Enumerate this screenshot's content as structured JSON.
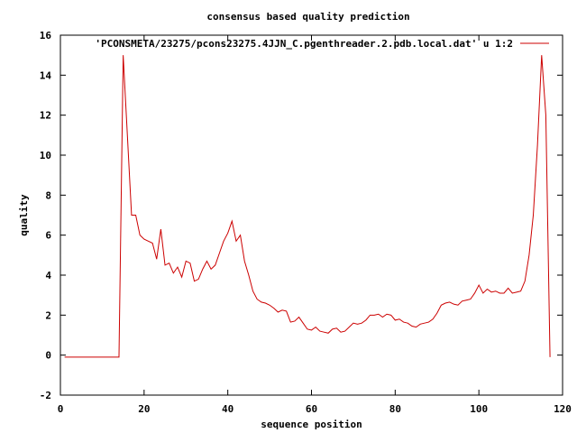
{
  "chart_data": {
    "type": "line",
    "title": "consensus based quality prediction",
    "xlabel": "sequence position",
    "ylabel": "quality",
    "xlim": [
      0,
      120
    ],
    "ylim": [
      -2,
      16
    ],
    "xticks": [
      0,
      20,
      40,
      60,
      80,
      100,
      120
    ],
    "yticks": [
      -2,
      0,
      2,
      4,
      6,
      8,
      10,
      12,
      14,
      16
    ],
    "legend_position": "top-right",
    "grid": false,
    "series": [
      {
        "name": "'PCONSMETA/23275/pcons23275.4JJN_C.pgenthreader.2.pdb.local.dat' u 1:2",
        "color": "#cc0000",
        "x": [
          1,
          2,
          3,
          4,
          5,
          6,
          7,
          8,
          9,
          10,
          11,
          12,
          13,
          14,
          15,
          16,
          17,
          18,
          19,
          20,
          21,
          22,
          23,
          24,
          25,
          26,
          27,
          28,
          29,
          30,
          31,
          32,
          33,
          34,
          35,
          36,
          37,
          38,
          39,
          40,
          41,
          42,
          43,
          44,
          45,
          46,
          47,
          48,
          49,
          50,
          51,
          52,
          53,
          54,
          55,
          56,
          57,
          58,
          59,
          60,
          61,
          62,
          63,
          64,
          65,
          66,
          67,
          68,
          69,
          70,
          71,
          72,
          73,
          74,
          75,
          76,
          77,
          78,
          79,
          80,
          81,
          82,
          83,
          84,
          85,
          86,
          87,
          88,
          89,
          90,
          91,
          92,
          93,
          94,
          95,
          96,
          97,
          98,
          99,
          100,
          101,
          102,
          103,
          104,
          105,
          106,
          107,
          108,
          109,
          110,
          111,
          112,
          113,
          114,
          115,
          116,
          117
        ],
        "y": [
          -0.1,
          -0.1,
          -0.1,
          -0.1,
          -0.1,
          -0.1,
          -0.1,
          -0.1,
          -0.1,
          -0.1,
          -0.1,
          -0.1,
          -0.1,
          -0.1,
          15.0,
          11.0,
          7.0,
          7.0,
          6.0,
          5.8,
          5.7,
          5.6,
          4.8,
          6.3,
          4.5,
          4.6,
          4.1,
          4.4,
          3.9,
          4.7,
          4.6,
          3.7,
          3.8,
          4.3,
          4.7,
          4.3,
          4.5,
          5.1,
          5.7,
          6.1,
          6.7,
          5.7,
          6.0,
          4.7,
          4.0,
          3.2,
          2.8,
          2.65,
          2.6,
          2.5,
          2.35,
          2.15,
          2.25,
          2.2,
          1.65,
          1.7,
          1.9,
          1.6,
          1.3,
          1.25,
          1.4,
          1.2,
          1.15,
          1.1,
          1.3,
          1.35,
          1.15,
          1.2,
          1.4,
          1.6,
          1.55,
          1.6,
          1.75,
          2.0,
          2.0,
          2.05,
          1.9,
          2.05,
          2.0,
          1.75,
          1.8,
          1.65,
          1.6,
          1.45,
          1.4,
          1.55,
          1.6,
          1.65,
          1.8,
          2.1,
          2.5,
          2.6,
          2.65,
          2.55,
          2.5,
          2.7,
          2.75,
          2.8,
          3.1,
          3.5,
          3.1,
          3.3,
          3.15,
          3.2,
          3.1,
          3.1,
          3.35,
          3.1,
          3.15,
          3.2,
          3.7,
          5.0,
          7.0,
          10.5,
          15.0,
          12.0,
          -0.1
        ]
      }
    ]
  }
}
